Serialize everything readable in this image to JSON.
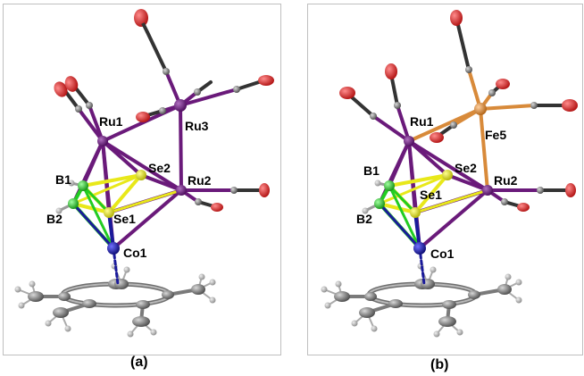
{
  "panels": [
    {
      "caption": "(a)",
      "labels": {
        "ru1": "Ru1",
        "ru3": "Ru3",
        "se2": "Se2",
        "ru2": "Ru2",
        "b1": "B1",
        "b2": "B2",
        "se1": "Se1",
        "co1": "Co1"
      }
    },
    {
      "caption": "(b)",
      "labels": {
        "ru1": "Ru1",
        "fe5": "Fe5",
        "se2": "Se2",
        "ru2": "Ru2",
        "b1": "B1",
        "b2": "B2",
        "se1": "Se1",
        "co1": "Co1"
      }
    }
  ],
  "colors": {
    "ruthenium": "#6a1a7a",
    "iron": "#d88a3a",
    "selenium": "#e8e81a",
    "boron": "#22cc22",
    "cobalt": "#1a1a9a",
    "carbon": "#6e6e6e",
    "oxygen": "#d42020",
    "hydrogen": "#9a9a9a"
  }
}
